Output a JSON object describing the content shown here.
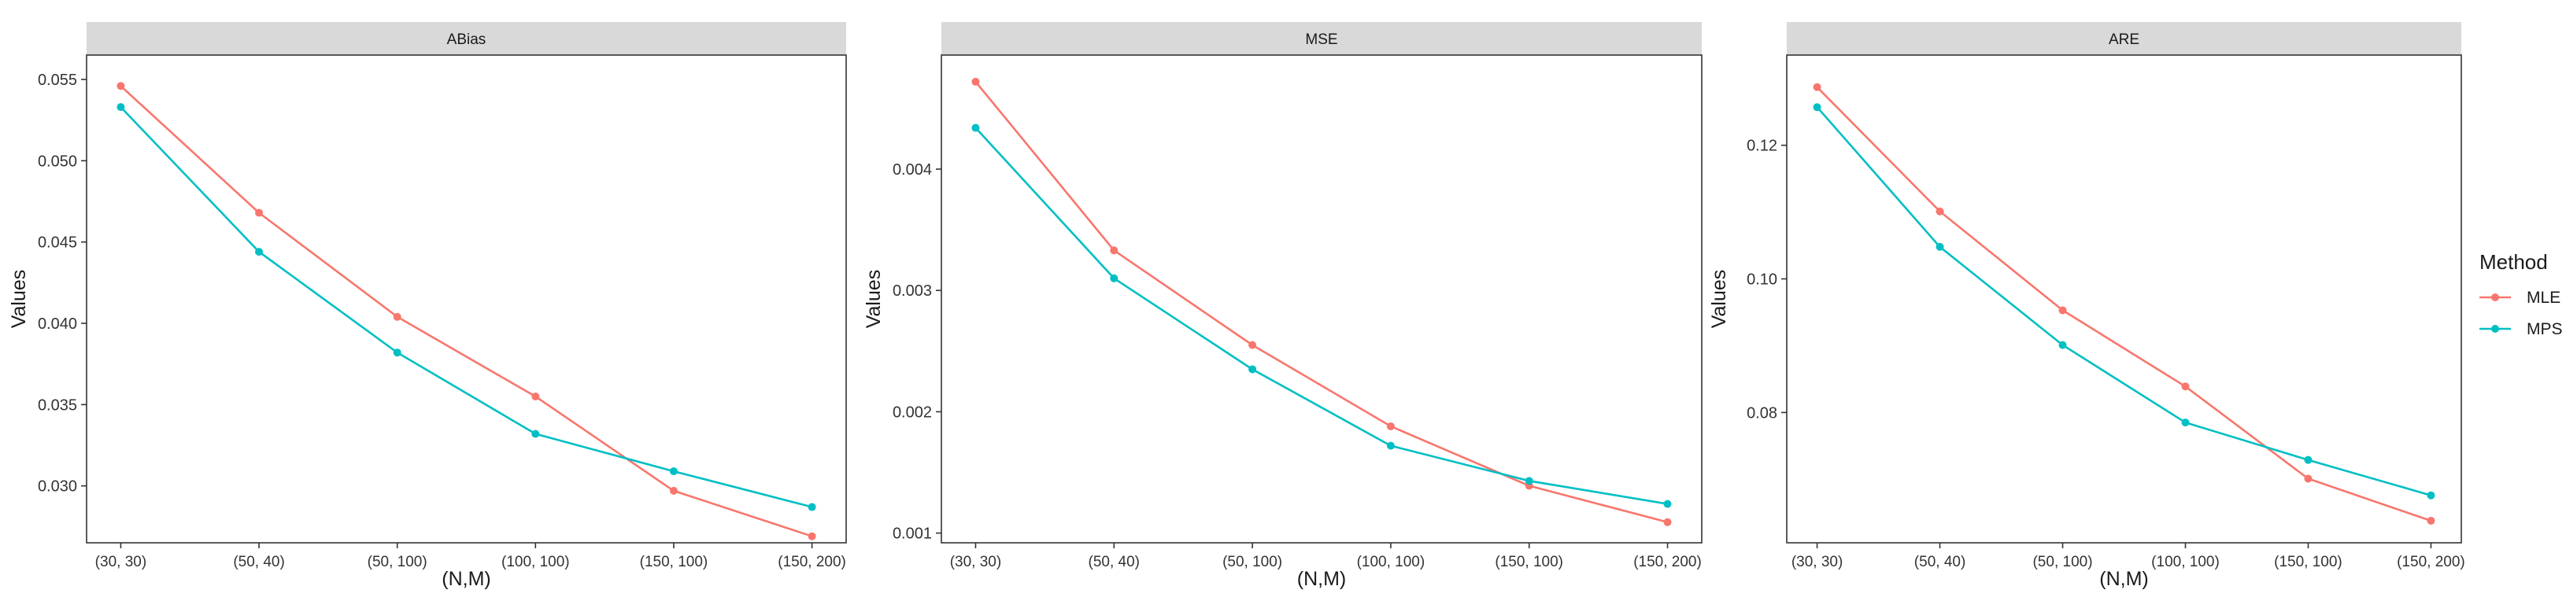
{
  "chart_data": [
    {
      "type": "line",
      "title": "ABias",
      "xlabel": "(N,M)",
      "ylabel": "Values",
      "categories": [
        "(30, 30)",
        "(50, 40)",
        "(50, 100)",
        "(100, 100)",
        "(150, 100)",
        "(150, 200)"
      ],
      "ylim": [
        0.0265,
        0.0565
      ],
      "yticks": [
        0.03,
        0.035,
        0.04,
        0.045,
        0.05,
        0.055
      ],
      "ytick_labels": [
        "0.030",
        "0.035",
        "0.040",
        "0.045",
        "0.050",
        "0.055"
      ],
      "series": [
        {
          "name": "MLE",
          "values": [
            0.0546,
            0.0468,
            0.0404,
            0.0355,
            0.0297,
            0.0269
          ]
        },
        {
          "name": "MPS",
          "values": [
            0.0533,
            0.0444,
            0.0382,
            0.0332,
            0.0309,
            0.0287
          ]
        }
      ]
    },
    {
      "type": "line",
      "title": "MSE",
      "xlabel": "(N,M)",
      "ylabel": "Values",
      "categories": [
        "(30, 30)",
        "(50, 40)",
        "(50, 100)",
        "(100, 100)",
        "(150, 100)",
        "(150, 200)"
      ],
      "ylim": [
        0.00092,
        0.00494
      ],
      "yticks": [
        0.001,
        0.002,
        0.003,
        0.004
      ],
      "ytick_labels": [
        "0.001",
        "0.002",
        "0.003",
        "0.004"
      ],
      "series": [
        {
          "name": "MLE",
          "values": [
            0.00472,
            0.00333,
            0.00255,
            0.00188,
            0.00139,
            0.00109
          ]
        },
        {
          "name": "MPS",
          "values": [
            0.00434,
            0.0031,
            0.00235,
            0.00172,
            0.00143,
            0.00124
          ]
        }
      ]
    },
    {
      "type": "line",
      "title": "ARE",
      "xlabel": "(N,M)",
      "ylabel": "Values",
      "categories": [
        "(30, 30)",
        "(50, 40)",
        "(50, 100)",
        "(100, 100)",
        "(150, 100)",
        "(150, 200)"
      ],
      "ylim": [
        0.0605,
        0.1335
      ],
      "yticks": [
        0.08,
        0.1,
        0.12
      ],
      "ytick_labels": [
        "0.08",
        "0.10",
        "0.12"
      ],
      "series": [
        {
          "name": "MLE",
          "values": [
            0.1287,
            0.1101,
            0.0953,
            0.0839,
            0.0701,
            0.0638
          ]
        },
        {
          "name": "MPS",
          "values": [
            0.1257,
            0.1048,
            0.0901,
            0.0785,
            0.0729,
            0.0676
          ]
        }
      ]
    }
  ],
  "legend": {
    "title": "Method",
    "placement": "right",
    "items": [
      {
        "label": "MLE",
        "color": "#F8766D"
      },
      {
        "label": "MPS",
        "color": "#00BFC4"
      }
    ]
  },
  "colors": {
    "MLE": "#F8766D",
    "MPS": "#00BFC4",
    "strip": "#d9d9d9"
  },
  "grid": false
}
